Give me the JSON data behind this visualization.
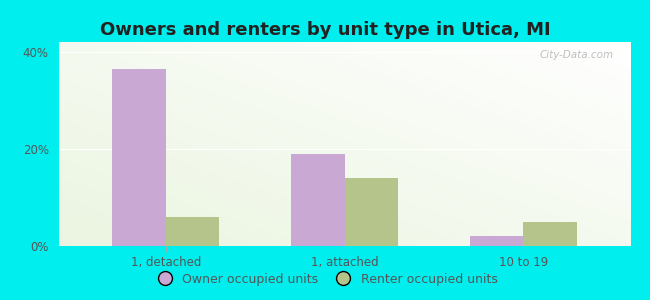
{
  "title": "Owners and renters by unit type in Utica, MI",
  "categories": [
    "1, detached",
    "1, attached",
    "10 to 19"
  ],
  "owner_values": [
    36.5,
    19.0,
    2.0
  ],
  "renter_values": [
    6.0,
    14.0,
    5.0
  ],
  "owner_color": "#c9a8d4",
  "renter_color": "#b5c48a",
  "outer_background": "#00eeee",
  "ylim": [
    0,
    42
  ],
  "yticks": [
    0,
    20,
    40
  ],
  "ytick_labels": [
    "0%",
    "20%",
    "40%"
  ],
  "bar_width": 0.3,
  "legend_labels": [
    "Owner occupied units",
    "Renter occupied units"
  ],
  "watermark": "City-Data.com",
  "title_fontsize": 13,
  "tick_fontsize": 8.5,
  "legend_fontsize": 9,
  "title_color": "#222222",
  "tick_color": "#555555"
}
